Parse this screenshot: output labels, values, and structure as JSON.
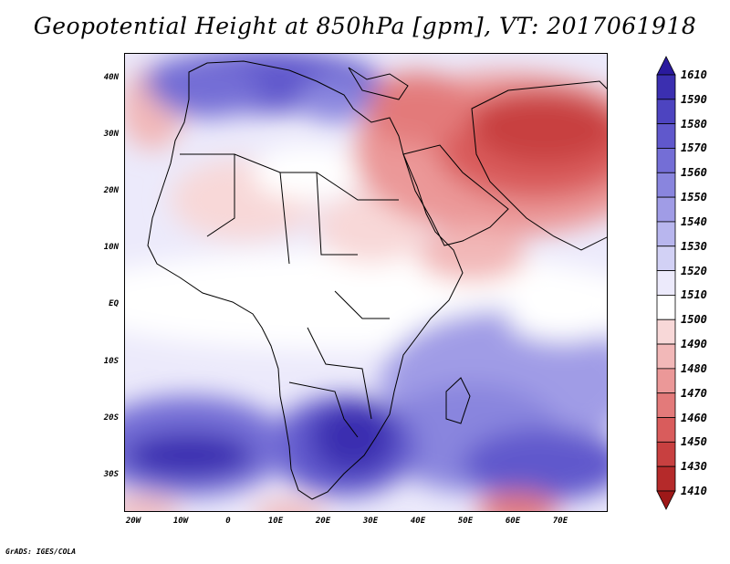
{
  "title": "Geopotential Height at 850hPa [gpm], VT: 2017061918",
  "credit": "GrADS: IGES/COLA",
  "lat_ticks": [
    "40N",
    "30N",
    "20N",
    "10N",
    "EQ",
    "10S",
    "20S",
    "30S"
  ],
  "lon_ticks": [
    "20W",
    "10W",
    "0",
    "10E",
    "20E",
    "30E",
    "40E",
    "50E",
    "60E",
    "70E"
  ],
  "colorbar": {
    "levels": [
      "1610",
      "1590",
      "1580",
      "1570",
      "1560",
      "1550",
      "1540",
      "1530",
      "1520",
      "1510",
      "1500",
      "1490",
      "1480",
      "1470",
      "1460",
      "1450",
      "1430",
      "1410"
    ],
    "colors": [
      "#2a1a9e",
      "#3b2fb0",
      "#4d44c0",
      "#6058cc",
      "#746ed6",
      "#8985de",
      "#a09ce6",
      "#b8b6ee",
      "#d2d1f5",
      "#eceafb",
      "#ffffff",
      "#f8d8d8",
      "#f2b8b8",
      "#eb9898",
      "#e37a7a",
      "#d95c5c",
      "#c84040",
      "#b52a2a",
      "#9e1818"
    ]
  },
  "map": {
    "variable": "Geopotential Height at 850hPa",
    "units": "gpm",
    "valid_time": "2017061918",
    "region": "Africa and Middle East",
    "lat_range": [
      -36,
      45
    ],
    "lon_range": [
      -22,
      80
    ]
  }
}
